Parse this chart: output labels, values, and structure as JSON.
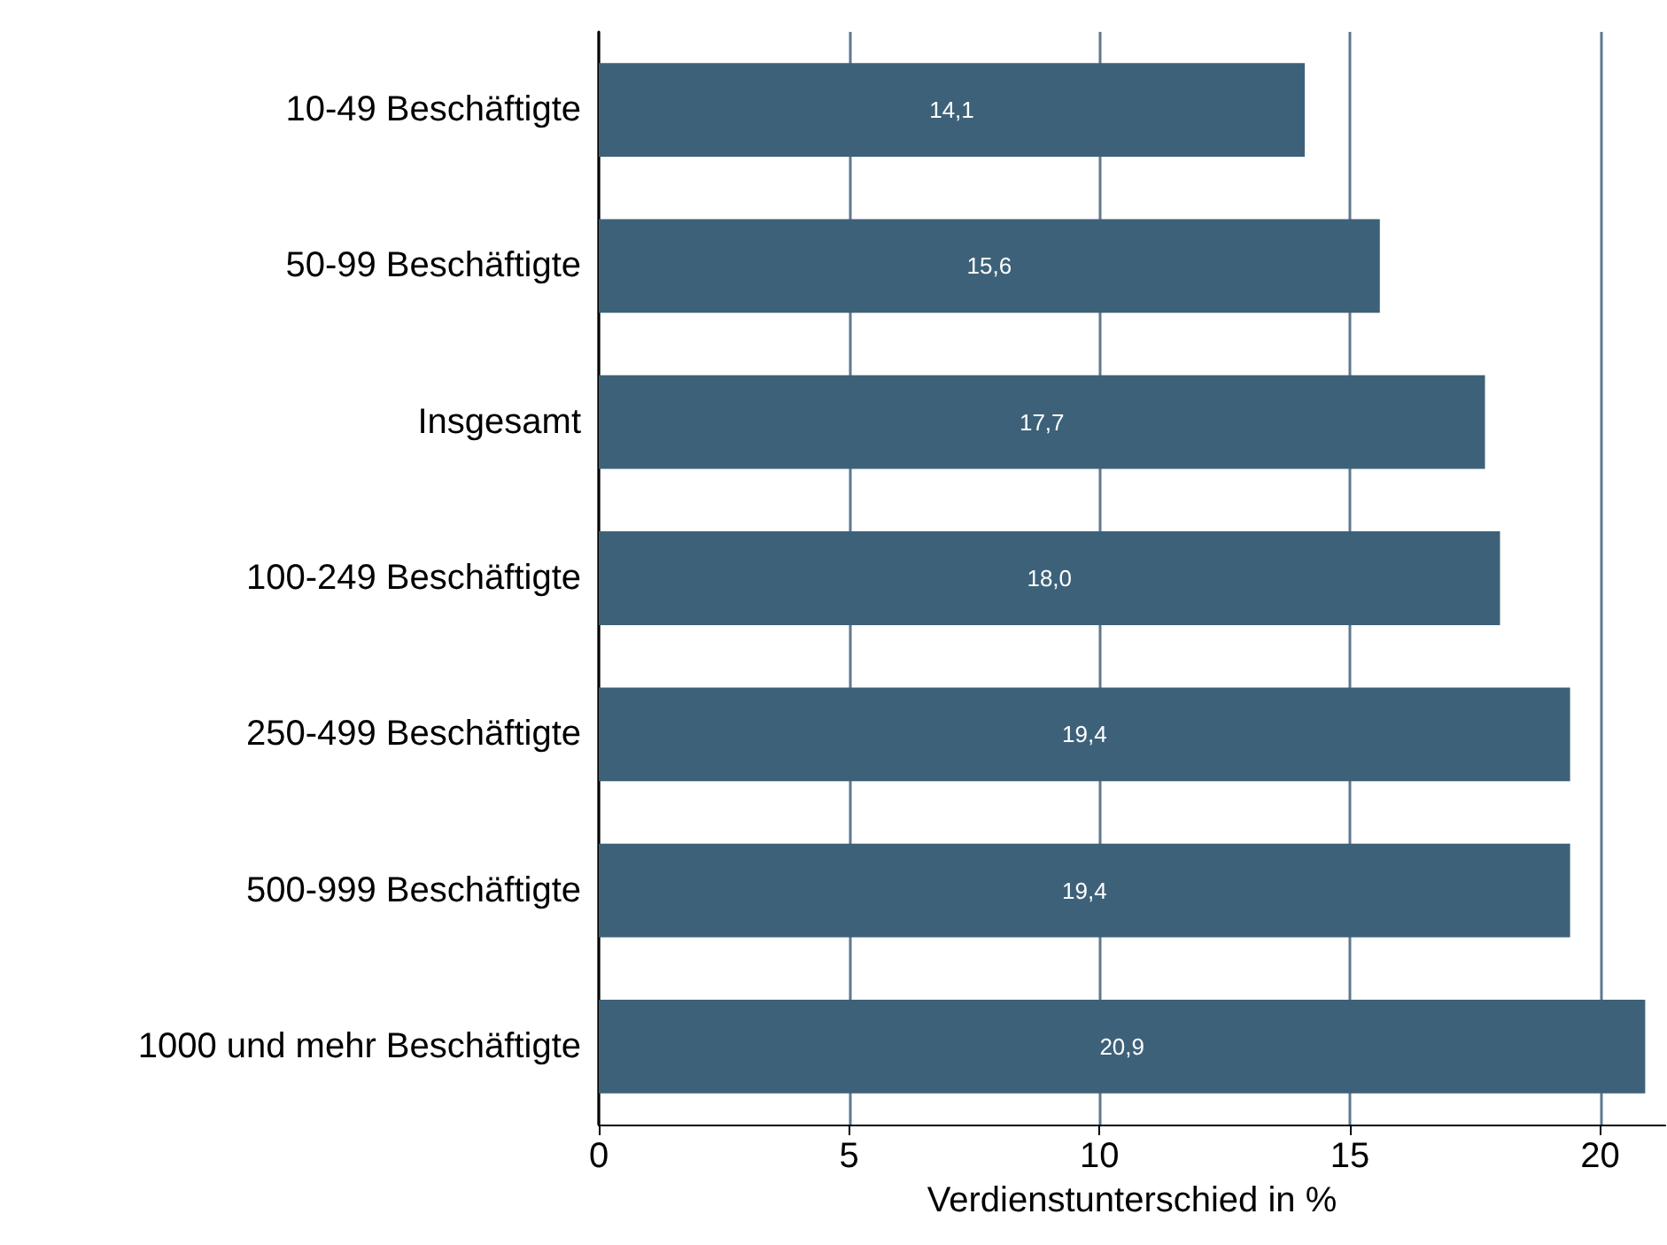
{
  "chart_data": {
    "type": "bar",
    "orientation": "horizontal",
    "xlabel": "Verdienstunterschied in %",
    "categories": [
      "10-49 Beschäftigte",
      "50-99 Beschäftigte",
      "Insgesamt",
      "100-249 Beschäftigte",
      "250-499 Beschäftigte",
      "500-999 Beschäftigte",
      "1000 und mehr Beschäftigte"
    ],
    "values": [
      14.1,
      15.6,
      17.7,
      18.0,
      19.4,
      19.4,
      20.9
    ],
    "value_labels": [
      "14,1",
      "15,6",
      "17,7",
      "18,0",
      "19,4",
      "19,4",
      "20,9"
    ],
    "color": "#3d6179",
    "xlim": [
      0,
      21.3
    ],
    "xticks": [
      0,
      5,
      10,
      15,
      20
    ],
    "grid": "x"
  }
}
